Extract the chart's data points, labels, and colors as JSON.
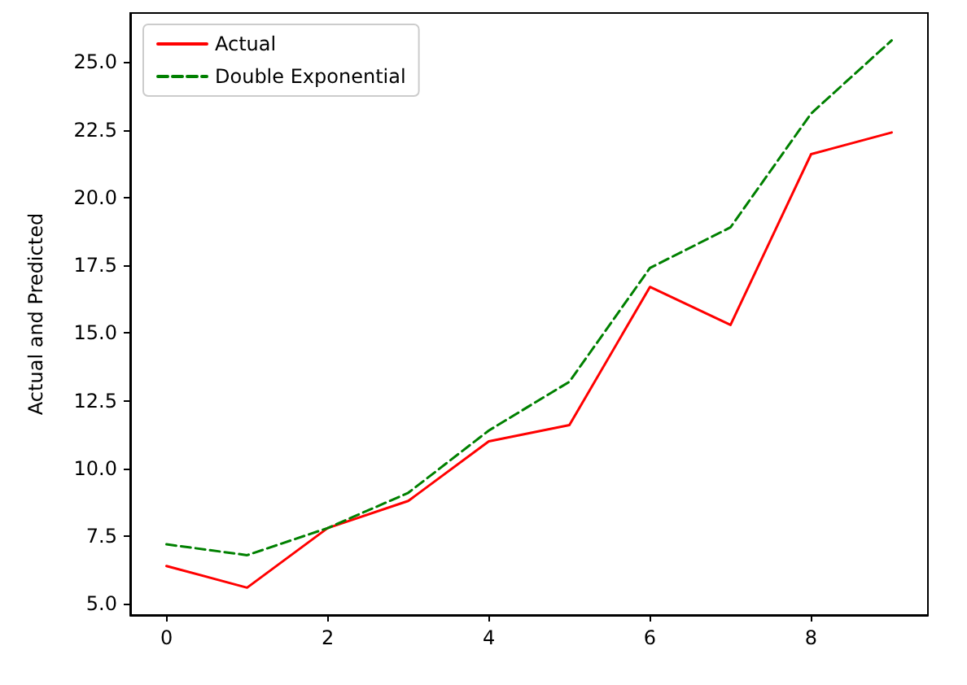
{
  "chart_data": {
    "type": "line",
    "ylabel": "Actual and Predicted",
    "x": [
      0,
      1,
      2,
      3,
      4,
      5,
      6,
      7,
      8,
      9
    ],
    "series": [
      {
        "name": "Actual",
        "color": "#ff0000",
        "line_style": "solid",
        "values": [
          6.4,
          5.6,
          7.8,
          8.8,
          11.0,
          11.6,
          16.7,
          15.3,
          21.6,
          22.4
        ]
      },
      {
        "name": "Double Exponential",
        "color": "#008000",
        "line_style": "dashed",
        "values": [
          7.2,
          6.8,
          7.8,
          9.1,
          11.4,
          13.2,
          17.4,
          18.9,
          23.1,
          25.8
        ]
      }
    ],
    "xlim": [
      -0.45,
      9.45
    ],
    "xticks": [
      0,
      2,
      4,
      6,
      8
    ],
    "ylim": [
      4.59,
      26.81
    ],
    "yticks": [
      {
        "value": 5,
        "label": "5.0"
      },
      {
        "value": 7.5,
        "label": "7.5"
      },
      {
        "value": 10,
        "label": "10.0"
      },
      {
        "value": 12.5,
        "label": "12.5"
      },
      {
        "value": 15,
        "label": "15.0"
      },
      {
        "value": 17.5,
        "label": "17.5"
      },
      {
        "value": 20,
        "label": "20.0"
      },
      {
        "value": 22.5,
        "label": "22.5"
      },
      {
        "value": 25,
        "label": "25.0"
      }
    ],
    "grid": false,
    "legend": "top left",
    "marker": "none"
  }
}
